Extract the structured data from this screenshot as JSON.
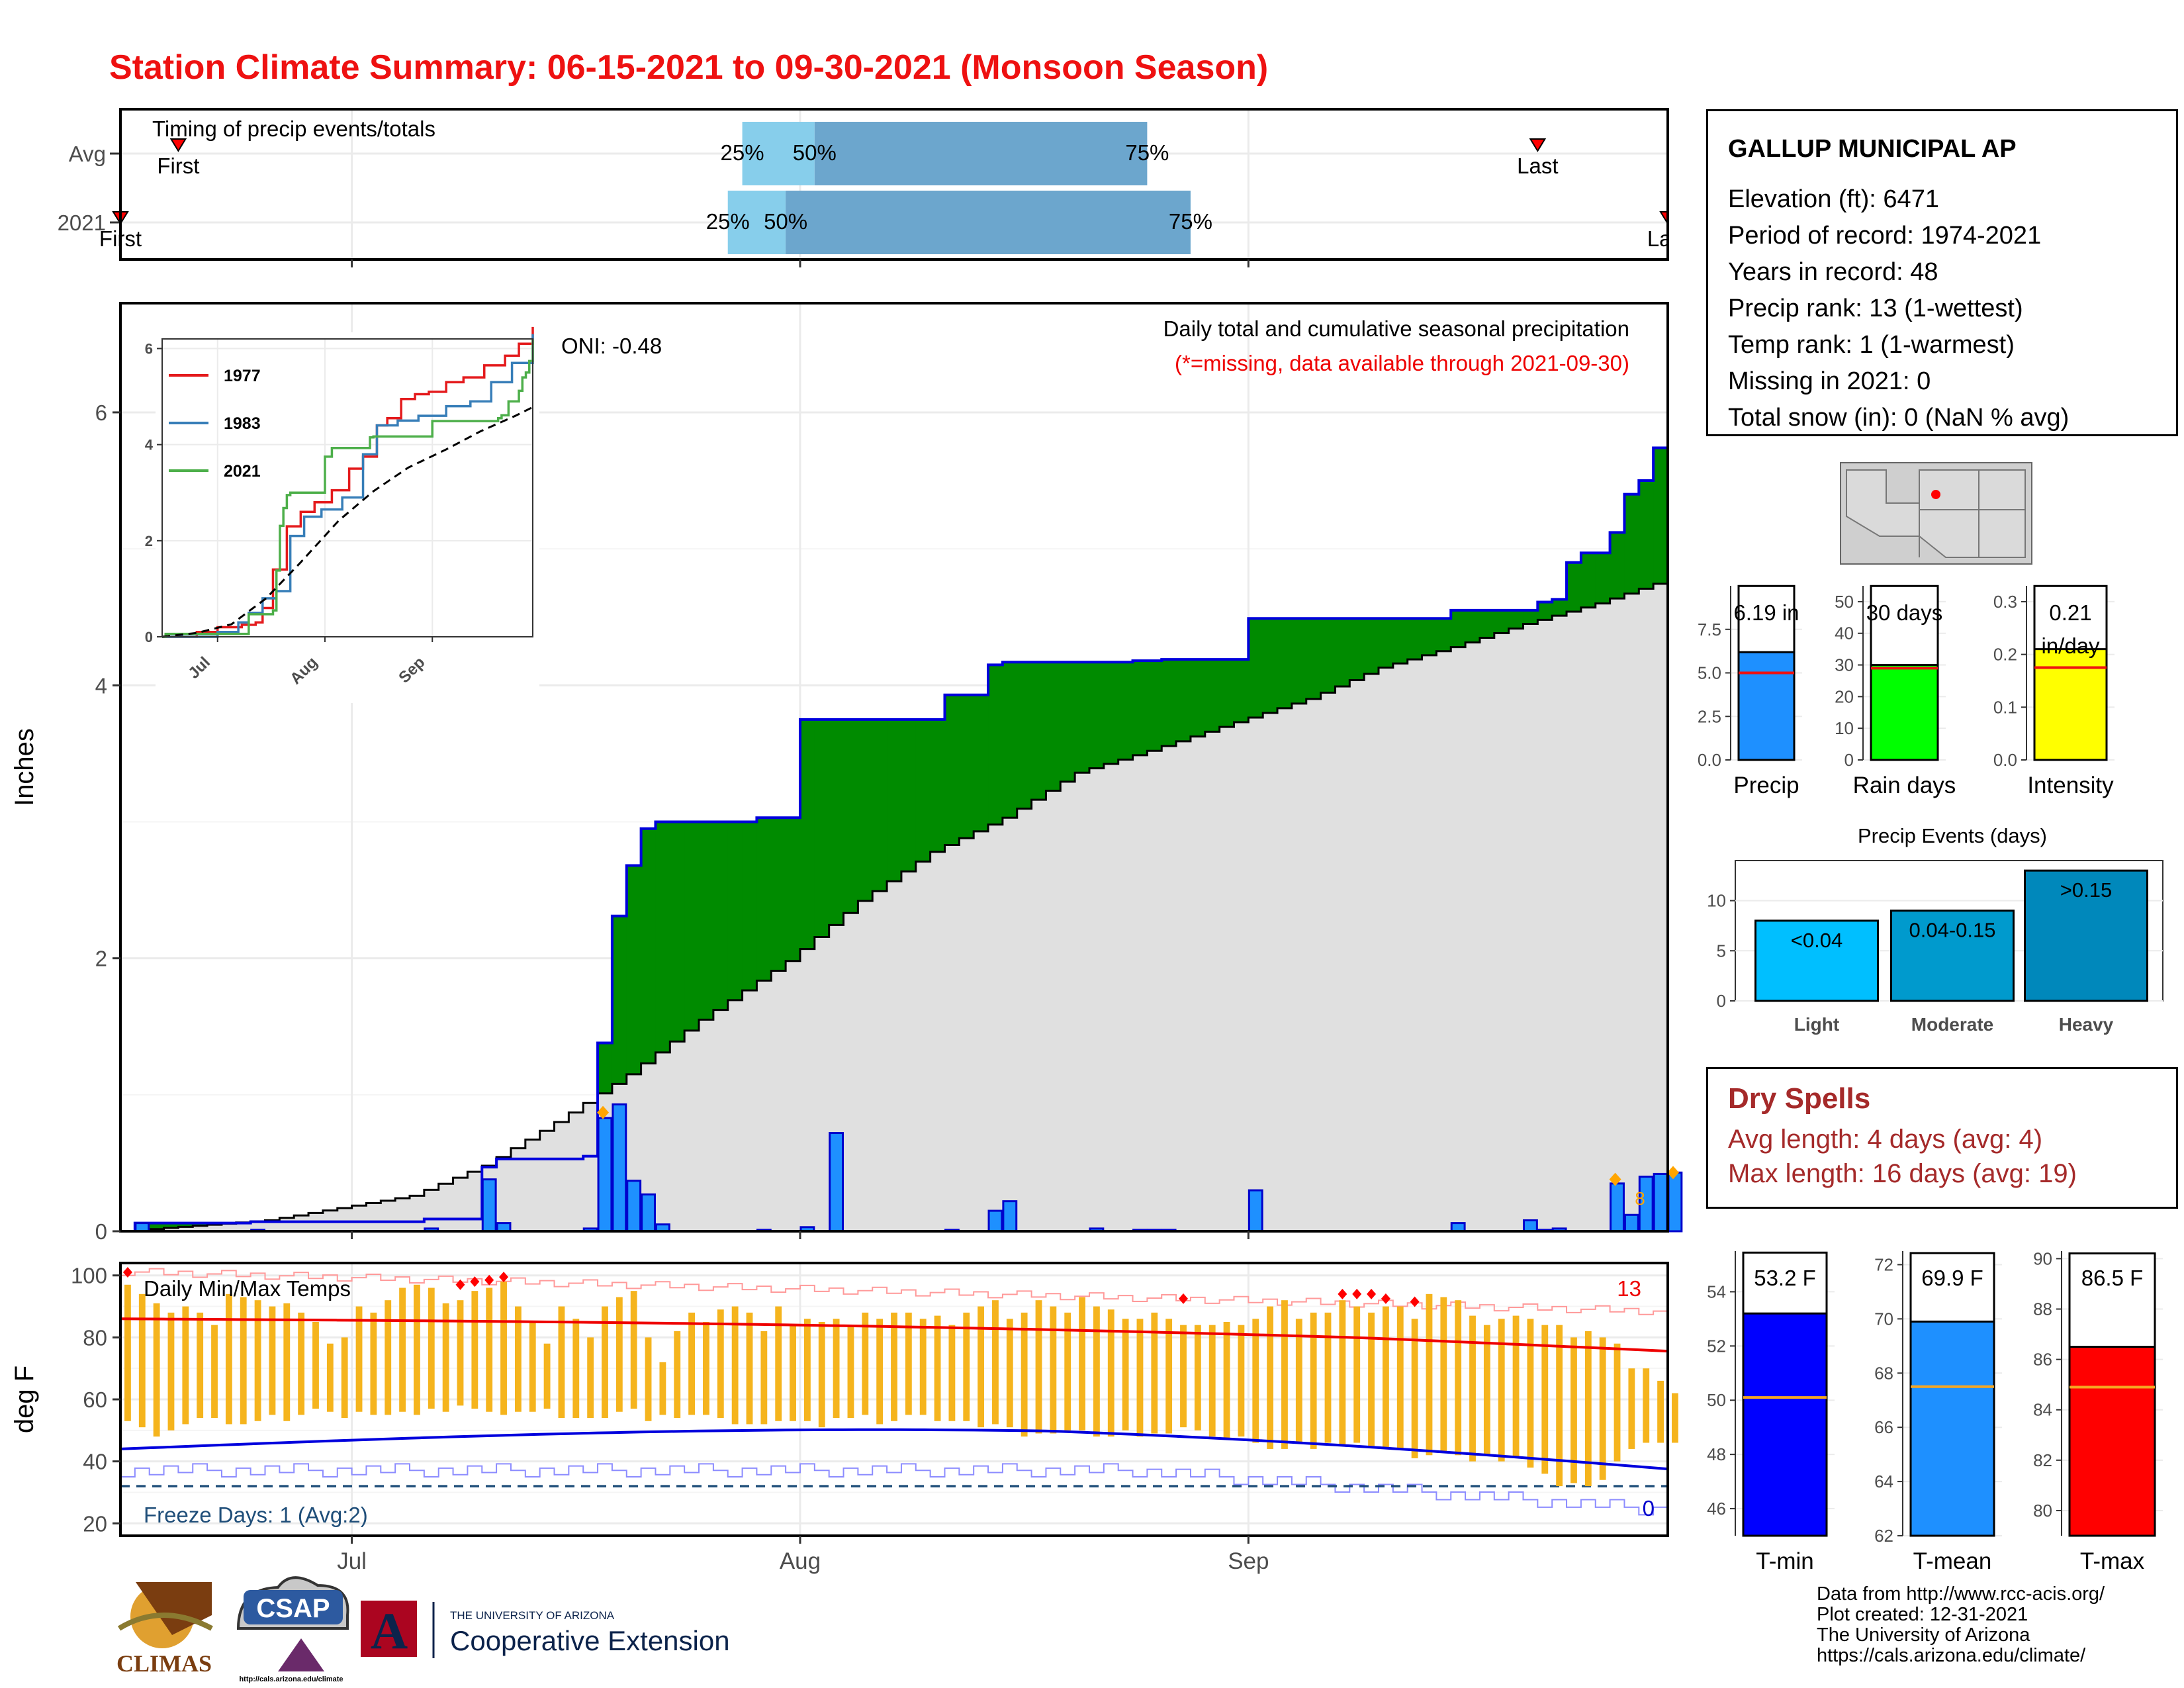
{
  "title": "Station Climate Summary: 06-15-2021 to 09-30-2021 (Monsoon Season)",
  "timing_panel": {
    "label": "Timing of precip events/totals",
    "rows": [
      {
        "name": "Avg",
        "first_label": "First",
        "last_label": "Last",
        "first_date": "2021-06-19",
        "last_date": "2021-09-21",
        "pct_dates": [
          "2021-07-28",
          "2021-08-02",
          "2021-08-25"
        ],
        "pct_labels": [
          "25%",
          "50%",
          "75%"
        ]
      },
      {
        "name": "2021",
        "first_label": "First",
        "last_label": "Last",
        "first_date": "2021-06-15",
        "last_date": "2021-09-30",
        "pct_dates": [
          "2021-07-27",
          "2021-07-31",
          "2021-08-28"
        ],
        "pct_labels": [
          "25%",
          "50%",
          "75%"
        ]
      }
    ]
  },
  "precip_panel": {
    "ylabel": "Inches",
    "header": "Daily total and cumulative seasonal precipitation",
    "missing_note": "(*=missing, data available through 2021-09-30)",
    "oni": "ONI: -0.48",
    "marker_note": "8"
  },
  "inset": {
    "legend": [
      "1977",
      "1983",
      "2021"
    ],
    "colors": [
      "#e41a1c",
      "#377eb8",
      "#4daf4a"
    ],
    "xticks": [
      "Jul",
      "Aug",
      "Sep"
    ],
    "yticks": [
      "0",
      "2",
      "4",
      "6"
    ]
  },
  "temp_panel": {
    "ylabel": "deg F",
    "label": "Daily Min/Max Temps",
    "hot_count": "13",
    "freeze_label": "Freeze Days: 1 (Avg:2)",
    "freeze_count": "0",
    "xticks": [
      "Jul",
      "Aug",
      "Sep"
    ]
  },
  "station": {
    "name": "GALLUP MUNICIPAL AP",
    "lines": [
      "Elevation (ft): 6471",
      "Period of record: 1974-2021",
      "Years in record: 48",
      "Precip rank: 13 (1-wettest)",
      "Temp rank: 1 (1-warmest)",
      "Missing in 2021: 0",
      "Total snow (in): 0 (NaN % avg)"
    ]
  },
  "mini_bars": {
    "precip": {
      "label": "Precip",
      "value_text": "6.19 in",
      "value": 6.19,
      "avg": 5.0,
      "ymax": 10,
      "ticks": [
        "0.0",
        "2.5",
        "5.0",
        "7.5"
      ],
      "color": "#1e90ff"
    },
    "rain_days": {
      "label": "Rain days",
      "value_text": "30 days",
      "value": 30,
      "avg": 29,
      "ymax": 55,
      "ticks": [
        "0",
        "10",
        "20",
        "30",
        "40",
        "50"
      ],
      "color": "#00ff00"
    },
    "intensity": {
      "label": "Intensity",
      "value_text": "0.21",
      "value_text2": "in/day",
      "value": 0.21,
      "avg": 0.175,
      "ymax": 0.33,
      "ticks": [
        "0.0",
        "0.1",
        "0.2",
        "0.3"
      ],
      "color": "#ffff00"
    }
  },
  "precip_events": {
    "title": "Precip Events (days)",
    "categories": [
      "Light",
      "Moderate",
      "Heavy"
    ],
    "bar_labels": [
      "<0.04",
      "0.04-0.15",
      ">0.15"
    ],
    "values": [
      8,
      9,
      13
    ],
    "colors": [
      "#00bfff",
      "#009acd",
      "#0088bb"
    ],
    "ticks": [
      "0",
      "5",
      "10"
    ]
  },
  "dry_spells": {
    "title": "Dry Spells",
    "avg_length": "Avg length: 4 days (avg: 4)",
    "max_length": "Max length: 16 days (avg: 19)"
  },
  "temp_bars": {
    "tmin": {
      "label": "T-min",
      "value_text": "53.2 F",
      "value": 53.2,
      "avg": 50.1,
      "ymin": 45,
      "ymax": 55.5,
      "ticks": [
        "46",
        "48",
        "50",
        "52",
        "54"
      ],
      "color": "#0000ff"
    },
    "tmean": {
      "label": "T-mean",
      "value_text": "69.9 F",
      "value": 69.9,
      "avg": 67.5,
      "ymin": 62,
      "ymax": 72.5,
      "ticks": [
        "62",
        "64",
        "66",
        "68",
        "70",
        "72"
      ],
      "color": "#1e90ff"
    },
    "tmax": {
      "label": "T-max",
      "value_text": "86.5 F",
      "value": 86.5,
      "avg": 84.9,
      "ymin": 79,
      "ymax": 90.3,
      "ticks": [
        "80",
        "82",
        "84",
        "86",
        "88",
        "90"
      ],
      "color": "#ff0000"
    }
  },
  "credits": [
    "Data from http://www.rcc-acis.org/",
    "Plot created: 12-31-2021",
    "The University of Arizona",
    "https://cals.arizona.edu/climate/"
  ],
  "logos": {
    "climas": "CLIMAS",
    "csap": "CSAP",
    "csap_url": "http://cals.arizona.edu/climate",
    "ua_top": "THE UNIVERSITY OF ARIZONA",
    "ua_bottom": "Cooperative Extension",
    "ua_letter": "A"
  },
  "chart_data": [
    {
      "type": "area",
      "title": "Daily total and cumulative seasonal precipitation",
      "ylabel": "Inches",
      "xlabel": "",
      "x_range": [
        "2021-06-15",
        "2021-09-30"
      ],
      "ylim": [
        0,
        6.8
      ],
      "xticks": [
        "Jul",
        "Aug",
        "Sep"
      ],
      "yticks": [
        0,
        2,
        4,
        6
      ],
      "grid": true,
      "series": [
        {
          "name": "2021",
          "x": [
            "2021-06-15",
            "2021-06-16",
            "2021-06-19",
            "2021-06-24",
            "2021-07-06",
            "2021-07-10",
            "2021-07-11",
            "2021-07-12",
            "2021-07-17",
            "2021-07-18",
            "2021-07-19",
            "2021-07-20",
            "2021-07-21",
            "2021-07-22",
            "2021-07-23",
            "2021-07-24",
            "2021-07-29",
            "2021-08-01",
            "2021-08-03",
            "2021-08-11",
            "2021-08-14",
            "2021-08-15",
            "2021-08-21",
            "2021-08-24",
            "2021-08-25",
            "2021-08-26",
            "2021-09-01",
            "2021-09-15",
            "2021-09-20",
            "2021-09-21",
            "2021-09-22",
            "2021-09-23",
            "2021-09-24",
            "2021-09-26",
            "2021-09-27",
            "2021-09-28",
            "2021-09-29",
            "2021-09-30"
          ],
          "y": [
            0,
            0.06,
            0.06,
            0.07,
            0.09,
            0.47,
            0.53,
            0.53,
            0.55,
            1.38,
            2.31,
            2.68,
            2.95,
            3.0,
            3.0,
            3.0,
            3.03,
            3.75,
            3.75,
            3.93,
            4.15,
            4.17,
            4.17,
            4.18,
            4.18,
            4.19,
            4.49,
            4.55,
            4.55,
            4.61,
            4.63,
            4.9,
            4.97,
            5.12,
            5.4,
            5.5,
            5.74,
            6.19
          ]
        },
        {
          "name": "Avg",
          "x": [
            "2021-06-15",
            "2021-06-25",
            "2021-07-05",
            "2021-07-10",
            "2021-07-15",
            "2021-07-20",
            "2021-07-25",
            "2021-07-31",
            "2021-08-05",
            "2021-08-10",
            "2021-08-15",
            "2021-08-20",
            "2021-08-25",
            "2021-08-31",
            "2021-09-05",
            "2021-09-10",
            "2021-09-15",
            "2021-09-20",
            "2021-09-25",
            "2021-09-30"
          ],
          "y": [
            0,
            0.08,
            0.26,
            0.48,
            0.8,
            1.15,
            1.55,
            1.98,
            2.42,
            2.78,
            3.03,
            3.36,
            3.52,
            3.73,
            3.9,
            4.13,
            4.28,
            4.45,
            4.6,
            4.78
          ]
        }
      ],
      "daily_bars": {
        "x": [
          "2021-06-16",
          "2021-06-24",
          "2021-07-06",
          "2021-07-10",
          "2021-07-11",
          "2021-07-17",
          "2021-07-18",
          "2021-07-19",
          "2021-07-20",
          "2021-07-21",
          "2021-07-22",
          "2021-07-29",
          "2021-08-01",
          "2021-08-03",
          "2021-08-11",
          "2021-08-14",
          "2021-08-15",
          "2021-08-21",
          "2021-08-24",
          "2021-08-25",
          "2021-08-26",
          "2021-09-01",
          "2021-09-15",
          "2021-09-20",
          "2021-09-21",
          "2021-09-22",
          "2021-09-26",
          "2021-09-27",
          "2021-09-28",
          "2021-09-29",
          "2021-09-30"
        ],
        "y": [
          0.06,
          0.01,
          0.02,
          0.38,
          0.06,
          0.02,
          0.83,
          0.93,
          0.37,
          0.27,
          0.05,
          0.01,
          0.03,
          0.72,
          0.01,
          0.15,
          0.22,
          0.02,
          0.01,
          0.01,
          0.01,
          0.3,
          0.06,
          0.08,
          0.01,
          0.02,
          0.35,
          0.12,
          0.4,
          0.42,
          0.43
        ]
      }
    },
    {
      "type": "line",
      "title": "",
      "xlabel": "",
      "ylabel": "",
      "x_range": [
        "2021-06-15",
        "2021-09-30"
      ],
      "xticks": [
        "Jul",
        "Aug",
        "Sep"
      ],
      "yticks": [
        0,
        2,
        4,
        6
      ],
      "series": [
        {
          "name": "1977",
          "x": [
            "2021-06-15",
            "2021-06-25",
            "2021-07-01",
            "2021-07-08",
            "2021-07-12",
            "2021-07-14",
            "2021-07-17",
            "2021-07-21",
            "2021-07-25",
            "2021-07-29",
            "2021-08-03",
            "2021-08-08",
            "2021-08-12",
            "2021-08-16",
            "2021-08-19",
            "2021-08-23",
            "2021-08-27",
            "2021-08-31",
            "2021-09-05",
            "2021-09-10",
            "2021-09-16",
            "2021-09-22",
            "2021-09-26",
            "2021-09-30"
          ],
          "y": [
            0,
            0.1,
            0.2,
            0.25,
            0.3,
            0.6,
            1.4,
            2.3,
            2.6,
            2.8,
            3.05,
            3.5,
            3.75,
            4.4,
            4.55,
            4.95,
            5.05,
            5.1,
            5.3,
            5.4,
            5.65,
            5.85,
            6.1,
            6.45
          ]
        },
        {
          "name": "1983",
          "x": [
            "2021-06-15",
            "2021-07-01",
            "2021-07-07",
            "2021-07-10",
            "2021-07-14",
            "2021-07-18",
            "2021-07-22",
            "2021-07-26",
            "2021-07-31",
            "2021-08-06",
            "2021-08-12",
            "2021-08-16",
            "2021-08-22",
            "2021-08-28",
            "2021-09-05",
            "2021-09-12",
            "2021-09-18",
            "2021-09-24",
            "2021-09-30"
          ],
          "y": [
            0,
            0.1,
            0.3,
            0.5,
            0.8,
            0.95,
            2.1,
            2.5,
            2.65,
            2.9,
            3.8,
            4.4,
            4.5,
            4.6,
            4.8,
            4.9,
            5.3,
            5.7,
            6.3
          ]
        },
        {
          "name": "2021",
          "x": [
            "2021-06-15",
            "2021-06-16",
            "2021-07-10",
            "2021-07-17",
            "2021-07-18",
            "2021-07-19",
            "2021-07-20",
            "2021-07-21",
            "2021-07-22",
            "2021-08-01",
            "2021-08-03",
            "2021-08-14",
            "2021-08-15",
            "2021-09-01",
            "2021-09-20",
            "2021-09-21",
            "2021-09-23",
            "2021-09-26",
            "2021-09-27",
            "2021-09-28",
            "2021-09-29",
            "2021-09-30"
          ],
          "y": [
            0,
            0.06,
            0.47,
            0.55,
            1.38,
            2.31,
            2.68,
            2.95,
            3.0,
            3.75,
            3.93,
            4.15,
            4.17,
            4.49,
            4.55,
            4.61,
            4.9,
            5.12,
            5.4,
            5.5,
            5.74,
            6.19
          ]
        },
        {
          "name": "Avg",
          "x": [
            "2021-06-15",
            "2021-06-25",
            "2021-07-05",
            "2021-07-15",
            "2021-07-25",
            "2021-08-05",
            "2021-08-15",
            "2021-08-25",
            "2021-09-05",
            "2021-09-15",
            "2021-09-25",
            "2021-09-30"
          ],
          "y": [
            0,
            0.08,
            0.26,
            0.8,
            1.55,
            2.42,
            3.03,
            3.52,
            3.9,
            4.28,
            4.6,
            4.78
          ]
        }
      ]
    },
    {
      "type": "line",
      "title": "Daily Min/Max Temps",
      "ylabel": "deg F",
      "x_range": [
        "2021-06-15",
        "2021-09-30"
      ],
      "xticks": [
        "Jul",
        "Aug",
        "Sep"
      ],
      "yticks": [
        20,
        40,
        60,
        80,
        100
      ],
      "ylim": [
        16,
        104
      ],
      "freeze_threshold": 32,
      "daily_range_bars": {
        "tmax": [
          97,
          94,
          91,
          88,
          90,
          88,
          84,
          94,
          93,
          92,
          90,
          91,
          88,
          85,
          78,
          80,
          90,
          88,
          92,
          96,
          97,
          96,
          91,
          92,
          95,
          96,
          98,
          90,
          85,
          78,
          90,
          86,
          80,
          90,
          93,
          95,
          80,
          72,
          82,
          88,
          85,
          89,
          90,
          88,
          82,
          90,
          84,
          86,
          85,
          86,
          84,
          88,
          86,
          88,
          88,
          86,
          87,
          84,
          88,
          90,
          92,
          86,
          88,
          92,
          90,
          88,
          93,
          90,
          89,
          86,
          86,
          88,
          86,
          84,
          84,
          84,
          85,
          84,
          86,
          90,
          92,
          86,
          88,
          88,
          92,
          90,
          88,
          90,
          90,
          86,
          94,
          93,
          92,
          87,
          84,
          86,
          87,
          86,
          84,
          84,
          80,
          82,
          80,
          78,
          70,
          70,
          66,
          62
        ],
        "tmin": [
          53,
          51,
          48,
          50,
          52,
          54,
          54,
          52,
          52,
          53,
          55,
          53,
          55,
          57,
          56,
          54,
          56,
          55,
          55,
          56,
          55,
          57,
          56,
          58,
          57,
          56,
          55,
          56,
          56,
          57,
          54,
          54,
          54,
          54,
          56,
          57,
          53,
          55,
          54,
          55,
          55,
          54,
          52,
          52,
          52,
          53,
          53,
          53,
          51,
          54,
          54,
          55,
          52,
          53,
          55,
          55,
          53,
          53,
          53,
          51,
          52,
          51,
          48,
          49,
          49,
          50,
          50,
          48,
          48,
          50,
          48,
          49,
          49,
          51,
          50,
          48,
          47,
          48,
          46,
          44,
          44,
          46,
          44,
          46,
          45,
          46,
          45,
          44,
          44,
          41,
          42,
          43,
          42,
          40,
          42,
          40,
          41,
          38,
          36,
          32,
          33,
          32,
          34,
          40,
          44,
          46,
          46,
          46
        ],
        "color": "#f5b41d"
      },
      "series": [
        {
          "name": "avg_max",
          "values_start": 86,
          "values_end": 76
        },
        {
          "name": "avg_min",
          "values_start": 44,
          "values_end": 37
        }
      ]
    },
    {
      "type": "bar",
      "title": "Precip Events (days)",
      "categories": [
        "Light",
        "Moderate",
        "Heavy"
      ],
      "values": [
        8,
        9,
        13
      ],
      "ylim": [
        0,
        14
      ]
    }
  ]
}
